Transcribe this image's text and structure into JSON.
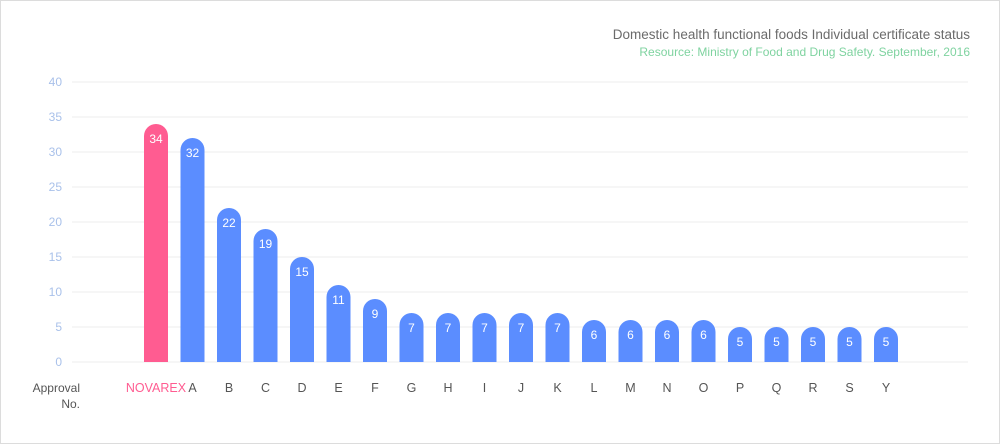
{
  "header": {
    "title": "Domestic health functional foods Individual certificate status",
    "source": "Resource: Ministry of Food and Drug Safety. September, 2016"
  },
  "axis": {
    "xlabel": "Approval No."
  },
  "colors": {
    "highlight": "#ff5c91",
    "bar": "#5b8dff",
    "highlight_label": "#ff5c91",
    "category_label": "#555555",
    "tick_label": "#a9c1ea",
    "grid": "#ececec",
    "title": "#6b6b6b",
    "source": "#7fd3a0"
  },
  "chart_data": {
    "type": "bar",
    "title": "Domestic health functional foods Individual certificate status",
    "subtitle": "Resource: Ministry of Food and Drug Safety. September, 2016",
    "xlabel": "Approval No.",
    "ylabel": "",
    "ylim": [
      0,
      40
    ],
    "yticks": [
      0,
      5,
      10,
      15,
      20,
      25,
      30,
      35,
      40
    ],
    "grid": true,
    "highlight_category": "NOVAREX",
    "categories": [
      "NOVAREX",
      "A",
      "B",
      "C",
      "D",
      "E",
      "F",
      "G",
      "H",
      "I",
      "J",
      "K",
      "L",
      "M",
      "N",
      "O",
      "P",
      "Q",
      "R",
      "S",
      "Y"
    ],
    "values": [
      34,
      32,
      22,
      19,
      15,
      11,
      9,
      7,
      7,
      7,
      7,
      7,
      6,
      6,
      6,
      6,
      5,
      5,
      5,
      5,
      5
    ]
  }
}
